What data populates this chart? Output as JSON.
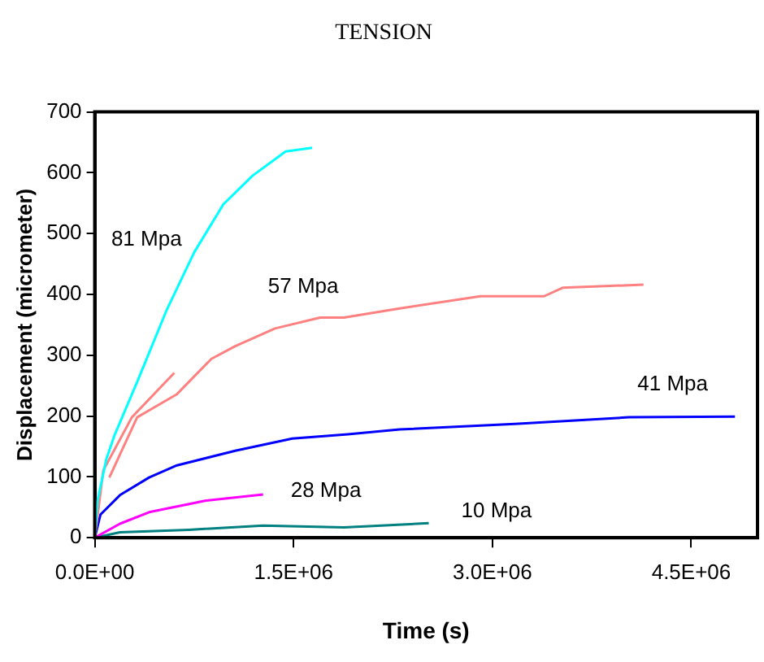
{
  "chart_data": {
    "type": "line",
    "title": "TENSION",
    "xlabel": "Time (s)",
    "ylabel": "Displacement (micrometer)",
    "xlim": [
      0,
      5000000
    ],
    "xticks": [
      {
        "value": 0,
        "label": "0.0E+00"
      },
      {
        "value": 1500000,
        "label": "1.5E+06"
      },
      {
        "value": 3000000,
        "label": "3.0E+06"
      },
      {
        "value": 4500000,
        "label": "4.5E+06"
      }
    ],
    "ylim": [
      0,
      700
    ],
    "yticks": [
      0,
      100,
      200,
      300,
      400,
      500,
      600,
      700
    ],
    "grid": false,
    "legend": false,
    "marker": "none",
    "line_style": "solid",
    "series": [
      {
        "name": "81 Mpa",
        "color": "#00ffff",
        "x": [
          0,
          20000,
          87000,
          150000,
          320000,
          540000,
          750000,
          970000,
          1190000,
          1440000,
          1640000
        ],
        "values": [
          0,
          60,
          129,
          169,
          256,
          373,
          469,
          548,
          595,
          635,
          641
        ]
      },
      {
        "color": "#ff8080",
        "x": [
          0,
          65000,
          280000,
          600000
        ],
        "values": [
          0,
          111,
          198,
          271
        ]
      },
      {
        "name": "57 Mpa",
        "color": "#ff8080",
        "x": [
          110000,
          320000,
          620000,
          880000,
          1060000,
          1360000,
          1700000,
          1880000,
          2300000,
          2910000,
          3390000,
          3530000,
          4140000
        ],
        "values": [
          99,
          198,
          236,
          294,
          315,
          344,
          362,
          362,
          377,
          397,
          397,
          411,
          416
        ]
      },
      {
        "name": "41 Mpa",
        "color": "#0000ff",
        "x": [
          0,
          43000,
          190000,
          410000,
          620000,
          1060000,
          1490000,
          1910000,
          2300000,
          3170000,
          4030000,
          4830000
        ],
        "values": [
          0,
          38,
          70,
          99,
          119,
          143,
          163,
          170,
          178,
          187,
          198,
          199
        ]
      },
      {
        "name": "28 Mpa",
        "color": "#ff00ff",
        "x": [
          0,
          190000,
          410000,
          840000,
          1270000
        ],
        "values": [
          0,
          23,
          42,
          61,
          71
        ]
      },
      {
        "name": "10 Mpa",
        "color": "#008080",
        "x": [
          0,
          190000,
          710000,
          1270000,
          1880000,
          2520000
        ],
        "values": [
          0,
          9,
          13,
          20,
          17,
          24
        ]
      }
    ]
  }
}
